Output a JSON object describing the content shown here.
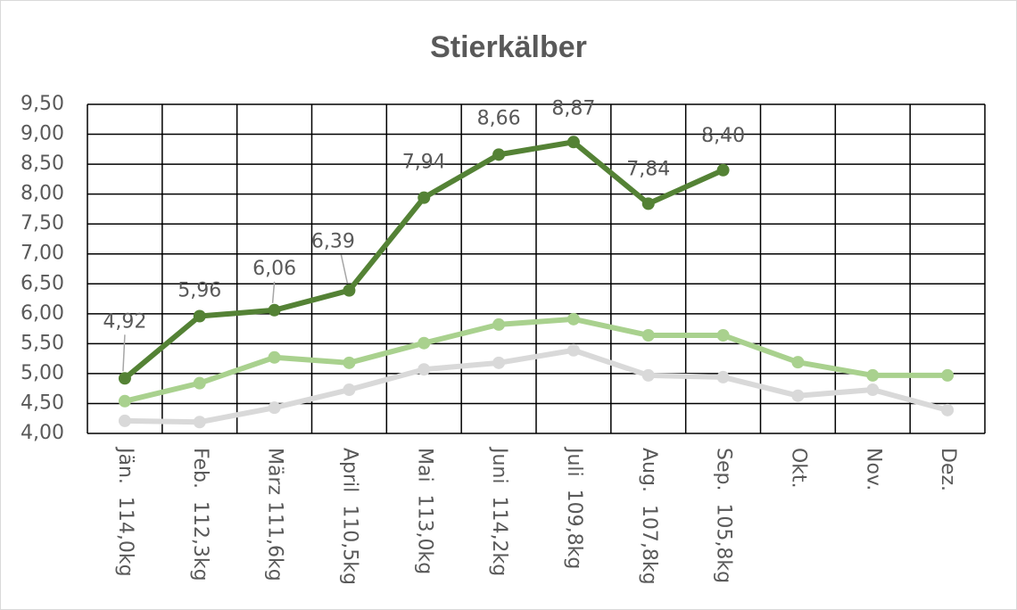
{
  "chart_data": {
    "type": "line",
    "title": "Stierkälber",
    "categories": [
      "Jän.  114,0kg",
      "Feb.  112,3kg",
      "März 111,6kg",
      "April  110,5kg",
      "Mai  113,0kg",
      "Juni  114,2kg",
      "Juli  109,8kg",
      "Aug.  107,8kg",
      "Sep.  105,8kg",
      "Okt.",
      "Nov.",
      "Dez."
    ],
    "series": [
      {
        "color": "#d9d9d9",
        "values": [
          4.21,
          4.19,
          4.43,
          4.73,
          5.07,
          5.18,
          5.39,
          4.97,
          4.94,
          4.63,
          4.73,
          4.39
        ]
      },
      {
        "color": "#a9d18e",
        "values": [
          4.54,
          4.84,
          5.27,
          5.18,
          5.51,
          5.82,
          5.91,
          5.64,
          5.64,
          5.19,
          4.97,
          4.97
        ]
      },
      {
        "color": "#548235",
        "values": [
          4.92,
          5.96,
          6.06,
          6.39,
          7.94,
          8.66,
          8.87,
          7.84,
          8.4,
          null,
          null,
          null
        ],
        "value_labels": [
          "4,92",
          "5,96",
          "6,06",
          "6,39",
          "7,94",
          "8,66",
          "8,87",
          "7,84",
          "8,40",
          null,
          null,
          null
        ]
      }
    ],
    "ylim": [
      4,
      9.5
    ],
    "yticks": [
      {
        "value": 4,
        "label": "4,00"
      },
      {
        "value": 4.5,
        "label": "4,50"
      },
      {
        "value": 5,
        "label": "5,00"
      },
      {
        "value": 5.5,
        "label": "5,50"
      },
      {
        "value": 6,
        "label": "6,00"
      },
      {
        "value": 6.5,
        "label": "6,50"
      },
      {
        "value": 7,
        "label": "7,00"
      },
      {
        "value": 7.5,
        "label": "7,50"
      },
      {
        "value": 8,
        "label": "8,00"
      },
      {
        "value": 8.5,
        "label": "8,50"
      },
      {
        "value": 9,
        "label": "9,00"
      },
      {
        "value": 9.5,
        "label": "9,50"
      }
    ],
    "grid": true
  }
}
